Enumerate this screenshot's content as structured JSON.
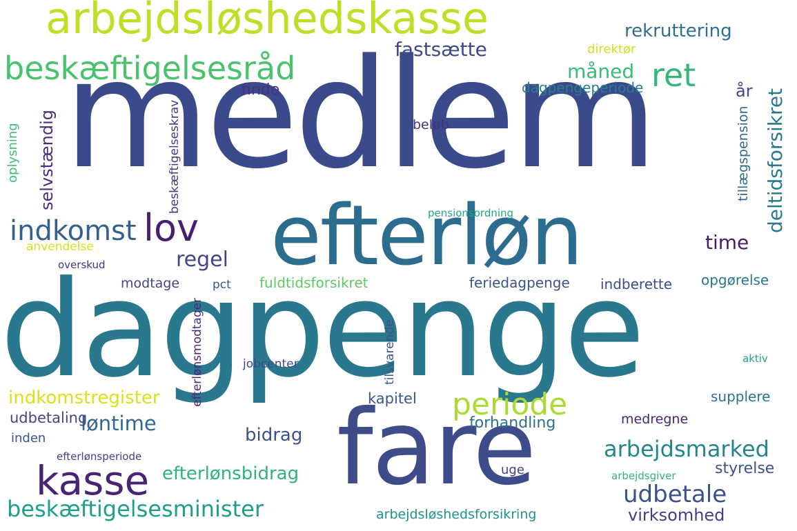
{
  "palette": {
    "background": "#ffffff",
    "purple": "#482878",
    "indigo": "#3e4989",
    "blue": "#31688e",
    "teal": "#26828e",
    "green": "#35b779",
    "lime": "#6ece58",
    "yellow": "#b5de2b"
  },
  "words": [
    {
      "text": "medlem",
      "color": "#3b4a8a"
    },
    {
      "text": "dagpenge",
      "color": "#2a788e"
    },
    {
      "text": "efterløn",
      "color": "#2c6c8f"
    },
    {
      "text": "fare",
      "color": "#3e4c8a"
    },
    {
      "text": "arbejdsløshedskasse",
      "color": "#bddf26"
    },
    {
      "text": "beskæftigelsesråd",
      "color": "#4ac16d"
    },
    {
      "text": "kasse",
      "color": "#482475"
    },
    {
      "text": "lov",
      "color": "#481f70"
    },
    {
      "text": "periode",
      "color": "#a8db34"
    },
    {
      "text": "ret",
      "color": "#35b779"
    },
    {
      "text": "indkomst",
      "color": "#355f8d"
    },
    {
      "text": "beskæftigelsesminister",
      "color": "#1f9e89"
    },
    {
      "text": "udbetale",
      "color": "#3b528b"
    },
    {
      "text": "arbejdsmarked",
      "color": "#25858e"
    },
    {
      "text": "indkomstregister",
      "color": "#d8e219"
    },
    {
      "text": "løntime",
      "color": "#31688e"
    },
    {
      "text": "efterlønsbidrag",
      "color": "#2eb37c"
    },
    {
      "text": "rekruttering",
      "color": "#2d708e"
    },
    {
      "text": "måned",
      "color": "#3aba76"
    },
    {
      "text": "deltidsforsikret",
      "color": "#2a788e"
    },
    {
      "text": "fastsætte",
      "color": "#3e4989"
    },
    {
      "text": "regel",
      "color": "#414487"
    },
    {
      "text": "time",
      "color": "#481a6c"
    },
    {
      "text": "bidrag",
      "color": "#3b528b"
    },
    {
      "text": "virksomhed",
      "color": "#433e85"
    },
    {
      "text": "arbejdsløshedsforsikring",
      "color": "#21918c"
    },
    {
      "text": "dagpengeperiode",
      "color": "#277f8e"
    },
    {
      "text": "selvstændig",
      "color": "#472d7b"
    },
    {
      "text": "finde",
      "color": "#46337f"
    },
    {
      "text": "år",
      "color": "#3f4889"
    },
    {
      "text": "fuldtidsforsikret",
      "color": "#5ec962"
    },
    {
      "text": "feriedagpenge",
      "color": "#3b528b"
    },
    {
      "text": "udbetaling",
      "color": "#404688"
    },
    {
      "text": "kapitel",
      "color": "#38588c"
    },
    {
      "text": "forhandling",
      "color": "#2c728e"
    },
    {
      "text": "styrelse",
      "color": "#3b528b"
    },
    {
      "text": "medregne",
      "color": "#482677"
    },
    {
      "text": "supplere",
      "color": "#2c728e"
    },
    {
      "text": "opgørelse",
      "color": "#2a788e"
    },
    {
      "text": "indberette",
      "color": "#3e4a89"
    },
    {
      "text": "modtage",
      "color": "#404588"
    },
    {
      "text": "anvendelse",
      "color": "#d2e21b"
    },
    {
      "text": "tillægspension",
      "color": "#31688e"
    },
    {
      "text": "beløb",
      "color": "#46307e"
    },
    {
      "text": "direktør",
      "color": "#cde11d"
    },
    {
      "text": "uge",
      "color": "#433e85"
    },
    {
      "text": "inden",
      "color": "#3b528b"
    },
    {
      "text": "oplysning",
      "color": "#3fbc73"
    },
    {
      "text": "tilsvarende",
      "color": "#3b528b"
    },
    {
      "text": "efterlønsmodtager",
      "color": "#482979"
    },
    {
      "text": "beskæftigelseskrav",
      "color": "#443983"
    },
    {
      "text": "jobcenter",
      "color": "#3e4989"
    },
    {
      "text": "pct",
      "color": "#39568c"
    },
    {
      "text": "overskud",
      "color": "#453581"
    },
    {
      "text": "efterlønsperiode",
      "color": "#433e85"
    },
    {
      "text": "arbejdsgiver",
      "color": "#2fb47c"
    },
    {
      "text": "pensionsordning",
      "color": "#22a785"
    },
    {
      "text": "aktiv",
      "color": "#1fa188"
    }
  ]
}
